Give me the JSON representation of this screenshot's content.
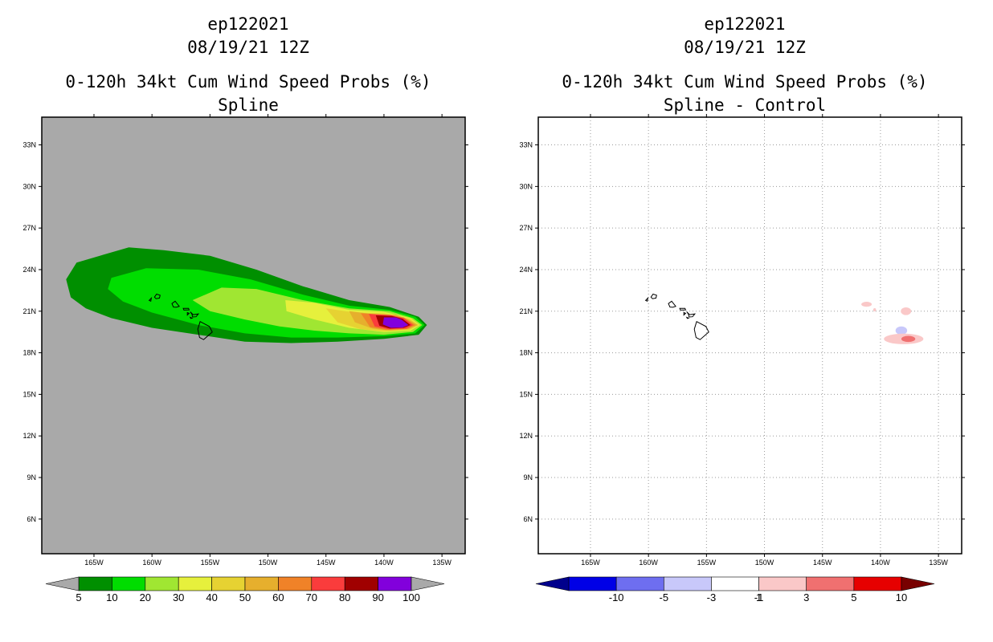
{
  "chart_data": [
    {
      "type": "filled-contour-map",
      "id": "ep122021",
      "date": "08/19/21 12Z",
      "title": "0-120h 34kt Cum Wind Speed Probs (%)",
      "subtitle": "Spline",
      "lon_range": [
        -169.5,
        -133
      ],
      "lat_range": [
        3.5,
        35
      ],
      "lon_ticks": [
        "165W",
        "160W",
        "155W",
        "150W",
        "145W",
        "140W",
        "135W"
      ],
      "lat_ticks": [
        "33N",
        "30N",
        "27N",
        "24N",
        "21N",
        "18N",
        "15N",
        "12N",
        "9N",
        "6N"
      ],
      "background_color": "#a9a9a9",
      "grid": false,
      "colorbar": {
        "labels": [
          "5",
          "10",
          "20",
          "30",
          "40",
          "50",
          "60",
          "70",
          "80",
          "90",
          "100"
        ],
        "colors": [
          "#008f00",
          "#00dd00",
          "#a0e632",
          "#e6f03c",
          "#e6d232",
          "#e6af2d",
          "#f08228",
          "#fa3c3c",
          "#a00000",
          "#8200dc"
        ],
        "extend_colors": [
          "#a9a9a9",
          "#a9a9a9"
        ]
      },
      "contours": [
        {
          "level": 5,
          "points": [
            [
              -166.5,
              24.5
            ],
            [
              -164.5,
              25
            ],
            [
              -162,
              25.6
            ],
            [
              -159,
              25.4
            ],
            [
              -155,
              25
            ],
            [
              -151,
              24
            ],
            [
              -147,
              22.8
            ],
            [
              -143,
              21.8
            ],
            [
              -139.5,
              21.3
            ],
            [
              -137,
              20.6
            ],
            [
              -136.3,
              20
            ],
            [
              -137,
              19.3
            ],
            [
              -140,
              19
            ],
            [
              -144,
              18.8
            ],
            [
              -148,
              18.7
            ],
            [
              -152,
              18.8
            ],
            [
              -156,
              19.3
            ],
            [
              -160,
              19.8
            ],
            [
              -163.5,
              20.5
            ],
            [
              -165.7,
              21.2
            ],
            [
              -167,
              22
            ],
            [
              -167.4,
              23.3
            ]
          ]
        },
        {
          "level": 10,
          "points": [
            [
              -163.5,
              23.4
            ],
            [
              -160.5,
              24.1
            ],
            [
              -156,
              24
            ],
            [
              -151.5,
              23.3
            ],
            [
              -147,
              22.2
            ],
            [
              -143,
              21.4
            ],
            [
              -139.5,
              21.1
            ],
            [
              -137.3,
              20.6
            ],
            [
              -136.5,
              20
            ],
            [
              -137.3,
              19.4
            ],
            [
              -140,
              19.2
            ],
            [
              -144,
              19.1
            ],
            [
              -148,
              19.1
            ],
            [
              -152,
              19.4
            ],
            [
              -156,
              20
            ],
            [
              -160,
              20.9
            ],
            [
              -162.5,
              21.7
            ],
            [
              -163.8,
              22.6
            ]
          ]
        },
        {
          "level": 20,
          "points": [
            [
              -156.5,
              21.8
            ],
            [
              -154,
              22.7
            ],
            [
              -151,
              22.6
            ],
            [
              -147,
              21.8
            ],
            [
              -143,
              21.2
            ],
            [
              -139.5,
              21
            ],
            [
              -137.5,
              20.5
            ],
            [
              -136.7,
              20
            ],
            [
              -137.5,
              19.5
            ],
            [
              -140,
              19.3
            ],
            [
              -143,
              19.4
            ],
            [
              -146,
              19.6
            ],
            [
              -149,
              19.9
            ],
            [
              -152,
              20.4
            ],
            [
              -155,
              21
            ]
          ]
        },
        {
          "level": 30,
          "points": [
            [
              -148.5,
              21.8
            ],
            [
              -146,
              21.6
            ],
            [
              -143,
              21.1
            ],
            [
              -140,
              20.95
            ],
            [
              -137.7,
              20.5
            ],
            [
              -136.9,
              20
            ],
            [
              -137.7,
              19.6
            ],
            [
              -140,
              19.5
            ],
            [
              -143,
              19.8
            ],
            [
              -146,
              20.4
            ],
            [
              -148.4,
              21
            ]
          ]
        },
        {
          "level": 40,
          "points": [
            [
              -145,
              21.2
            ],
            [
              -142.5,
              20.9
            ],
            [
              -140,
              20.85
            ],
            [
              -137.8,
              20.45
            ],
            [
              -137,
              20
            ],
            [
              -137.8,
              19.65
            ],
            [
              -140,
              19.55
            ],
            [
              -142,
              19.7
            ],
            [
              -144,
              20.2
            ]
          ]
        },
        {
          "level": 50,
          "points": [
            [
              -143,
              21
            ],
            [
              -141,
              20.8
            ],
            [
              -139,
              20.75
            ],
            [
              -137.9,
              20.4
            ],
            [
              -137.1,
              20
            ],
            [
              -137.9,
              19.7
            ],
            [
              -139.5,
              19.6
            ],
            [
              -141,
              19.75
            ],
            [
              -142.5,
              20.2
            ]
          ]
        },
        {
          "level": 60,
          "points": [
            [
              -142,
              20.85
            ],
            [
              -140,
              20.75
            ],
            [
              -138.3,
              20.55
            ],
            [
              -137.3,
              20
            ],
            [
              -138,
              19.72
            ],
            [
              -139.8,
              19.65
            ],
            [
              -141.2,
              19.85
            ]
          ]
        },
        {
          "level": 70,
          "points": [
            [
              -141.3,
              20.8
            ],
            [
              -139.5,
              20.72
            ],
            [
              -138.3,
              20.5
            ],
            [
              -137.5,
              20
            ],
            [
              -138.1,
              19.75
            ],
            [
              -139.6,
              19.7
            ],
            [
              -140.8,
              19.9
            ]
          ]
        },
        {
          "level": 80,
          "points": [
            [
              -140.7,
              20.7
            ],
            [
              -139.3,
              20.65
            ],
            [
              -138.4,
              20.45
            ],
            [
              -137.7,
              20
            ],
            [
              -138.3,
              19.8
            ],
            [
              -139.5,
              19.75
            ],
            [
              -140.4,
              19.95
            ]
          ]
        },
        {
          "level": 90,
          "points": [
            [
              -140,
              20.55
            ],
            [
              -139,
              20.55
            ],
            [
              -138.5,
              20.4
            ],
            [
              -137.9,
              20
            ],
            [
              -138.4,
              19.82
            ],
            [
              -139.4,
              19.8
            ],
            [
              -140.1,
              20.05
            ]
          ]
        }
      ]
    },
    {
      "type": "filled-contour-map",
      "id": "ep122021",
      "date": "08/19/21 12Z",
      "title": "0-120h 34kt Cum Wind Speed Probs (%)",
      "subtitle": "Spline - Control",
      "lon_range": [
        -169.5,
        -133
      ],
      "lat_range": [
        3.5,
        35
      ],
      "lon_ticks": [
        "165W",
        "160W",
        "155W",
        "150W",
        "145W",
        "140W",
        "135W"
      ],
      "lat_ticks": [
        "33N",
        "30N",
        "27N",
        "24N",
        "21N",
        "18N",
        "15N",
        "12N",
        "9N",
        "6N"
      ],
      "background_color": "#ffffff",
      "grid": true,
      "colorbar": {
        "labels": [
          "-10",
          "-5",
          "-3",
          "-1",
          "1",
          "3",
          "5",
          "10"
        ],
        "colors": [
          "#0000e6",
          "#6e6ef0",
          "#c8c8fa",
          "#ffffff",
          "#fac8c8",
          "#f07070",
          "#e60000"
        ],
        "extend_colors": [
          "#00008c",
          "#780000"
        ]
      },
      "blobs": [
        {
          "level": 1,
          "center": [
            -141.2,
            21.5
          ],
          "radius": [
            0.45,
            0.18
          ]
        },
        {
          "level": 1,
          "center": [
            -140.5,
            21.1
          ],
          "radius": [
            0.12,
            0.12
          ]
        },
        {
          "level": 1,
          "center": [
            -137.8,
            21
          ],
          "radius": [
            0.45,
            0.28
          ]
        },
        {
          "level": -1,
          "center": [
            -138.2,
            19.6
          ],
          "radius": [
            0.5,
            0.3
          ]
        },
        {
          "level": 1,
          "center": [
            -138,
            19
          ],
          "radius": [
            1.7,
            0.38
          ]
        },
        {
          "level": 3,
          "center": [
            -137.6,
            19
          ],
          "radius": [
            0.6,
            0.22
          ]
        }
      ]
    }
  ]
}
